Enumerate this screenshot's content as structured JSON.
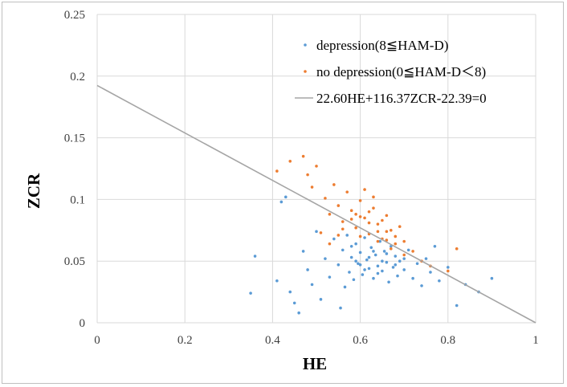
{
  "chart_data": {
    "type": "scatter",
    "title": "",
    "xlabel": "HE",
    "ylabel": "ZCR",
    "xlim": [
      0,
      1
    ],
    "ylim": [
      0,
      0.25
    ],
    "grid": true,
    "legend_position": "top-right",
    "x_ticks": [
      "0",
      "0.2",
      "0.4",
      "0.6",
      "0.8",
      "1"
    ],
    "y_ticks": [
      "0",
      "0.05",
      "0.1",
      "0.15",
      "0.2",
      "0.25"
    ],
    "series": [
      {
        "name": "depression(8≦HAM-D)",
        "color": "#5b9bd5",
        "points": [
          [
            0.35,
            0.024
          ],
          [
            0.36,
            0.054
          ],
          [
            0.41,
            0.034
          ],
          [
            0.42,
            0.098
          ],
          [
            0.43,
            0.102
          ],
          [
            0.44,
            0.025
          ],
          [
            0.45,
            0.016
          ],
          [
            0.46,
            0.008
          ],
          [
            0.47,
            0.058
          ],
          [
            0.48,
            0.043
          ],
          [
            0.49,
            0.031
          ],
          [
            0.5,
            0.074
          ],
          [
            0.51,
            0.019
          ],
          [
            0.52,
            0.052
          ],
          [
            0.53,
            0.037
          ],
          [
            0.54,
            0.068
          ],
          [
            0.55,
            0.047
          ],
          [
            0.555,
            0.012
          ],
          [
            0.56,
            0.059
          ],
          [
            0.565,
            0.029
          ],
          [
            0.57,
            0.071
          ],
          [
            0.575,
            0.041
          ],
          [
            0.58,
            0.053
          ],
          [
            0.585,
            0.035
          ],
          [
            0.59,
            0.064
          ],
          [
            0.595,
            0.048
          ],
          [
            0.6,
            0.057
          ],
          [
            0.605,
            0.039
          ],
          [
            0.61,
            0.069
          ],
          [
            0.615,
            0.051
          ],
          [
            0.62,
            0.044
          ],
          [
            0.625,
            0.061
          ],
          [
            0.63,
            0.036
          ],
          [
            0.635,
            0.055
          ],
          [
            0.64,
            0.046
          ],
          [
            0.645,
            0.066
          ],
          [
            0.65,
            0.042
          ],
          [
            0.655,
            0.058
          ],
          [
            0.66,
            0.049
          ],
          [
            0.665,
            0.033
          ],
          [
            0.67,
            0.062
          ],
          [
            0.675,
            0.045
          ],
          [
            0.68,
            0.054
          ],
          [
            0.685,
            0.038
          ],
          [
            0.69,
            0.05
          ],
          [
            0.7,
            0.043
          ],
          [
            0.71,
            0.059
          ],
          [
            0.72,
            0.036
          ],
          [
            0.73,
            0.048
          ],
          [
            0.74,
            0.03
          ],
          [
            0.75,
            0.052
          ],
          [
            0.76,
            0.041
          ],
          [
            0.77,
            0.062
          ],
          [
            0.78,
            0.034
          ],
          [
            0.8,
            0.045
          ],
          [
            0.82,
            0.014
          ],
          [
            0.84,
            0.031
          ],
          [
            0.87,
            0.025
          ],
          [
            0.9,
            0.036
          ],
          [
            0.6,
            0.047
          ],
          [
            0.62,
            0.053
          ],
          [
            0.64,
            0.04
          ],
          [
            0.58,
            0.062
          ],
          [
            0.66,
            0.056
          ],
          [
            0.68,
            0.047
          ],
          [
            0.7,
            0.052
          ],
          [
            0.63,
            0.058
          ],
          [
            0.61,
            0.043
          ],
          [
            0.59,
            0.05
          ],
          [
            0.65,
            0.05
          ]
        ]
      },
      {
        "name": "no depression(0≦HAM-D＜8)",
        "color": "#ed7d31",
        "points": [
          [
            0.41,
            0.123
          ],
          [
            0.44,
            0.131
          ],
          [
            0.47,
            0.135
          ],
          [
            0.48,
            0.12
          ],
          [
            0.49,
            0.11
          ],
          [
            0.5,
            0.127
          ],
          [
            0.52,
            0.101
          ],
          [
            0.53,
            0.088
          ],
          [
            0.54,
            0.112
          ],
          [
            0.55,
            0.095
          ],
          [
            0.56,
            0.082
          ],
          [
            0.57,
            0.106
          ],
          [
            0.58,
            0.091
          ],
          [
            0.59,
            0.077
          ],
          [
            0.6,
            0.099
          ],
          [
            0.61,
            0.085
          ],
          [
            0.62,
            0.072
          ],
          [
            0.63,
            0.093
          ],
          [
            0.64,
            0.08
          ],
          [
            0.65,
            0.068
          ],
          [
            0.66,
            0.087
          ],
          [
            0.67,
            0.075
          ],
          [
            0.68,
            0.064
          ],
          [
            0.69,
            0.078
          ],
          [
            0.7,
            0.066
          ],
          [
            0.72,
            0.058
          ],
          [
            0.74,
            0.05
          ],
          [
            0.76,
            0.046
          ],
          [
            0.56,
            0.076
          ],
          [
            0.58,
            0.084
          ],
          [
            0.6,
            0.07
          ],
          [
            0.62,
            0.081
          ],
          [
            0.64,
            0.066
          ],
          [
            0.66,
            0.074
          ],
          [
            0.68,
            0.07
          ],
          [
            0.61,
            0.108
          ],
          [
            0.63,
            0.102
          ],
          [
            0.65,
            0.083
          ],
          [
            0.67,
            0.06
          ],
          [
            0.7,
            0.055
          ],
          [
            0.55,
            0.071
          ],
          [
            0.53,
            0.064
          ],
          [
            0.51,
            0.073
          ],
          [
            0.8,
            0.042
          ],
          [
            0.82,
            0.06
          ],
          [
            0.62,
            0.09
          ],
          [
            0.6,
            0.086
          ],
          [
            0.64,
            0.074
          ],
          [
            0.59,
            0.088
          ],
          [
            0.66,
            0.067
          ]
        ]
      }
    ],
    "line": {
      "name": "22.60HE+116.37ZCR-22.39=0",
      "color": "#a5a5a5",
      "points": [
        [
          0,
          0.1924
        ],
        [
          1,
          0
        ]
      ]
    }
  }
}
